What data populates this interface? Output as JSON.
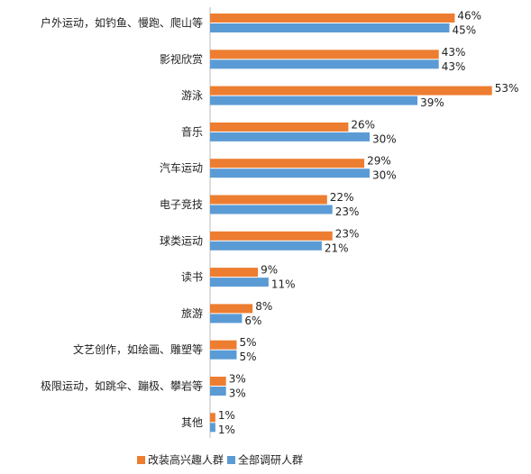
{
  "chart_data": {
    "type": "barh",
    "categories": [
      "户外运动，如钓鱼、慢跑、爬山等",
      "影视欣赏",
      "游泳",
      "音乐",
      "汽车运动",
      "电子竞技",
      "球类运动",
      "读书",
      "旅游",
      "文艺创作，如绘画、雕塑等",
      "极限运动，如跳伞、蹦极、攀岩等",
      "其他"
    ],
    "series": [
      {
        "name": "改装高兴趣人群",
        "color": "#ed7d31",
        "values": [
          46,
          43,
          53,
          26,
          29,
          22,
          23,
          9,
          8,
          5,
          3,
          1
        ],
        "value_labels": [
          "46%",
          "43%",
          "53%",
          "26%",
          "29%",
          "22%",
          "23%",
          "9%",
          "8%",
          "5%",
          "3%",
          "1%"
        ]
      },
      {
        "name": "全部调研人群",
        "color": "#5b9bd5",
        "values": [
          45,
          43,
          39,
          30,
          30,
          23,
          21,
          11,
          6,
          5,
          3,
          1
        ],
        "value_labels": [
          "45%",
          "43%",
          "39%",
          "30%",
          "30%",
          "23%",
          "21%",
          "11%",
          "6%",
          "5%",
          "3%",
          "1%"
        ]
      }
    ],
    "legend": "bottom"
  }
}
